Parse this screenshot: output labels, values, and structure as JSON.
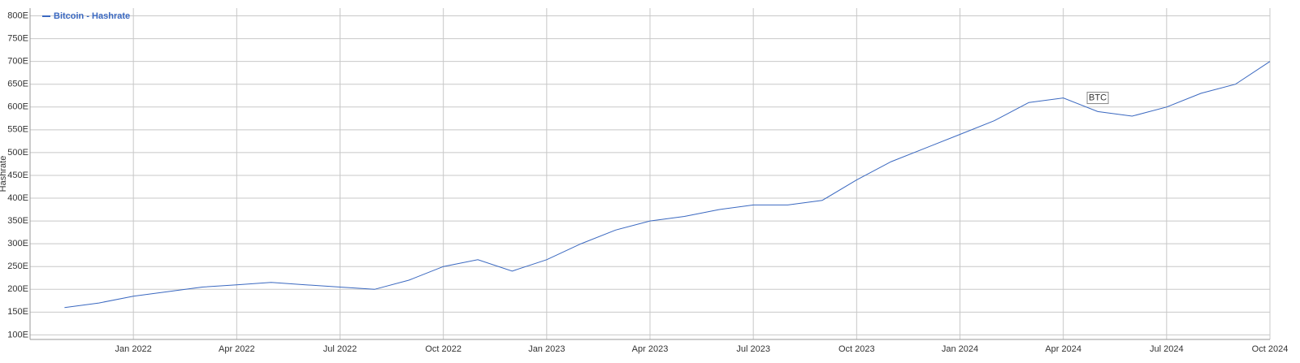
{
  "chart_data": {
    "type": "line",
    "y_label": "Hashrate",
    "grid": true,
    "legend": "top-left",
    "x": [
      "2021-11",
      "2021-12",
      "2022-01",
      "2022-02",
      "2022-03",
      "2022-04",
      "2022-05",
      "2022-06",
      "2022-07",
      "2022-08",
      "2022-09",
      "2022-10",
      "2022-11",
      "2022-12",
      "2023-01",
      "2023-02",
      "2023-03",
      "2023-04",
      "2023-05",
      "2023-06",
      "2023-07",
      "2023-08",
      "2023-09",
      "2023-10",
      "2023-11",
      "2023-12",
      "2024-01",
      "2024-02",
      "2024-03",
      "2024-04",
      "2024-05",
      "2024-06",
      "2024-07",
      "2024-08",
      "2024-09",
      "2024-10"
    ],
    "series": [
      {
        "name": "Bitcoin - Hashrate",
        "color": "#3a68c0",
        "values": [
          160,
          170,
          185,
          195,
          205,
          210,
          215,
          210,
          205,
          200,
          220,
          250,
          265,
          240,
          265,
          300,
          330,
          350,
          360,
          375,
          385,
          385,
          395,
          440,
          480,
          510,
          540,
          570,
          610,
          620,
          590,
          580,
          600,
          630,
          650,
          700
        ]
      }
    ],
    "xlim": [
      "2021-10",
      "2024-10"
    ],
    "xticks": [
      {
        "value": "2022-01",
        "label": "Jan 2022"
      },
      {
        "value": "2022-04",
        "label": "Apr 2022"
      },
      {
        "value": "2022-07",
        "label": "Jul 2022"
      },
      {
        "value": "2022-10",
        "label": "Oct 2022"
      },
      {
        "value": "2023-01",
        "label": "Jan 2023"
      },
      {
        "value": "2023-04",
        "label": "Apr 2023"
      },
      {
        "value": "2023-07",
        "label": "Jul 2023"
      },
      {
        "value": "2023-10",
        "label": "Oct 2023"
      },
      {
        "value": "2024-01",
        "label": "Jan 2024"
      },
      {
        "value": "2024-04",
        "label": "Apr 2024"
      },
      {
        "value": "2024-07",
        "label": "Jul 2024"
      },
      {
        "value": "2024-10",
        "label": "Oct 2024"
      }
    ],
    "ylim": [
      90,
      817
    ],
    "yticks": [
      {
        "value": 100,
        "label": "100E"
      },
      {
        "value": 150,
        "label": "150E"
      },
      {
        "value": 200,
        "label": "200E"
      },
      {
        "value": 250,
        "label": "250E"
      },
      {
        "value": 300,
        "label": "300E"
      },
      {
        "value": 350,
        "label": "350E"
      },
      {
        "value": 400,
        "label": "400E"
      },
      {
        "value": 450,
        "label": "450E"
      },
      {
        "value": 500,
        "label": "500E"
      },
      {
        "value": 550,
        "label": "550E"
      },
      {
        "value": 600,
        "label": "600E"
      },
      {
        "value": 650,
        "label": "650E"
      },
      {
        "value": 700,
        "label": "700E"
      },
      {
        "value": 750,
        "label": "750E"
      },
      {
        "value": 800,
        "label": "800E"
      }
    ],
    "annotation": {
      "text": "BTC",
      "x": "2024-05",
      "y": 620
    }
  }
}
